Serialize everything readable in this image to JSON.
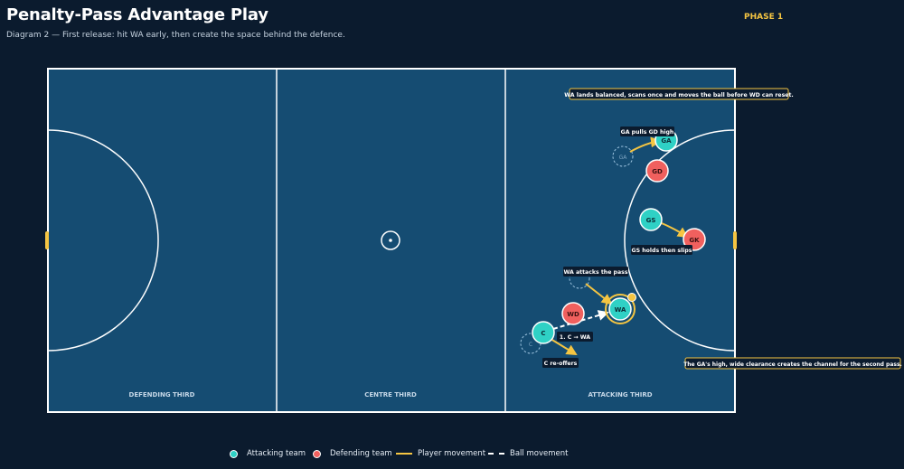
{
  "header": {
    "title": "Penalty-Pass Advantage Play",
    "subtitle": "Diagram 2 — First release: hit WA early, then create the space behind the defence.",
    "phase": "PHASE 1"
  },
  "colors": {
    "background": "#0b1b2e",
    "court": "#154c72",
    "attacking": "#2fd1c5",
    "defending": "#f0605e",
    "movement": "#f5c542",
    "accent_label": "#f5c542"
  },
  "court": {
    "thirds": [
      "DEFENDING THIRD",
      "CENTRE THIRD",
      "ATTACKING THIRD"
    ]
  },
  "players": {
    "ga": "GA",
    "gd": "GD",
    "gs": "GS",
    "gk": "GK",
    "wa": "WA",
    "wd": "WD",
    "c": "C",
    "ga_ghost": "GA",
    "c_ghost": "C"
  },
  "annotations": {
    "ga_pulls": "GA pulls GD high",
    "gs_holds": "GS holds then slips",
    "wa_attacks": "WA attacks the pass",
    "pass_label": "1. C → WA",
    "c_reoffers": "C re-offers",
    "wa_lands": "WA lands balanced, scans once and moves the ball before WD can reset.",
    "ga_clearance": "The GA's high, wide clearance creates the channel for the second pass."
  },
  "legend": {
    "attacking": "Attacking team",
    "defending": "Defending team",
    "player_movement": "Player movement",
    "ball_movement": "Ball movement"
  }
}
